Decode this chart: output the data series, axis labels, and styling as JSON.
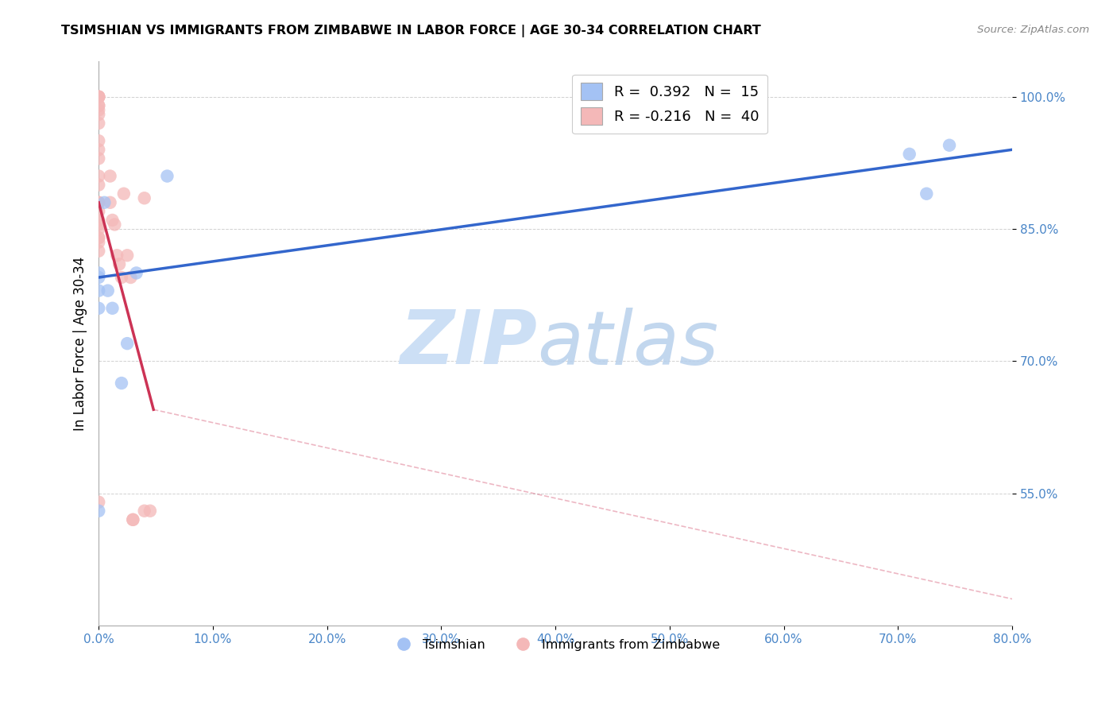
{
  "title": "TSIMSHIAN VS IMMIGRANTS FROM ZIMBABWE IN LABOR FORCE | AGE 30-34 CORRELATION CHART",
  "source": "Source: ZipAtlas.com",
  "ylabel_label": "In Labor Force | Age 30-34",
  "xlim": [
    0.0,
    0.8
  ],
  "ylim": [
    0.4,
    1.04
  ],
  "x_ticks": [
    0.0,
    0.1,
    0.2,
    0.3,
    0.4,
    0.5,
    0.6,
    0.7,
    0.8
  ],
  "y_ticks": [
    0.55,
    0.7,
    0.85,
    1.0
  ],
  "x_tick_labels": [
    "0.0%",
    "10.0%",
    "20.0%",
    "30.0%",
    "40.0%",
    "50.0%",
    "60.0%",
    "70.0%",
    "80.0%"
  ],
  "y_tick_labels": [
    "55.0%",
    "70.0%",
    "85.0%",
    "100.0%"
  ],
  "legend_label1": "R =  0.392   N =  15",
  "legend_label2": "R = -0.216   N =  40",
  "legend_color1": "#a4c2f4",
  "legend_color2": "#f4b8b8",
  "color_tsimshian": "#a4c2f4",
  "color_zimbabwe": "#f4b8b8",
  "trendline_color1": "#3366cc",
  "trendline_color2": "#cc3355",
  "watermark_zip": "ZIP",
  "watermark_atlas": "atlas",
  "blue_line_x0": 0.0,
  "blue_line_y0": 0.795,
  "blue_line_x1": 0.8,
  "blue_line_y1": 0.94,
  "pink_line_solid_x0": 0.0,
  "pink_line_solid_y0": 0.88,
  "pink_line_solid_x1": 0.048,
  "pink_line_solid_y1": 0.645,
  "pink_line_dash_x1": 0.8,
  "pink_line_dash_y1": 0.43,
  "tsimshian_x": [
    0.0,
    0.0,
    0.0,
    0.0,
    0.0,
    0.005,
    0.008,
    0.012,
    0.02,
    0.025,
    0.033,
    0.06,
    0.71,
    0.725,
    0.745
  ],
  "tsimshian_y": [
    0.8,
    0.795,
    0.78,
    0.76,
    0.53,
    0.88,
    0.78,
    0.76,
    0.675,
    0.72,
    0.8,
    0.91,
    0.935,
    0.89,
    0.945
  ],
  "zimbabwe_x": [
    0.0,
    0.0,
    0.0,
    0.0,
    0.0,
    0.0,
    0.0,
    0.0,
    0.0,
    0.0,
    0.0,
    0.0,
    0.0,
    0.0,
    0.0,
    0.0,
    0.0,
    0.0,
    0.0,
    0.0,
    0.0,
    0.0,
    0.0,
    0.0,
    0.0,
    0.01,
    0.01,
    0.012,
    0.014,
    0.016,
    0.018,
    0.02,
    0.022,
    0.025,
    0.028,
    0.03,
    0.03,
    0.04,
    0.04,
    0.045
  ],
  "zimbabwe_y": [
    0.54,
    0.87,
    0.9,
    0.93,
    0.94,
    0.95,
    0.97,
    0.98,
    0.985,
    0.99,
    0.99,
    1.0,
    1.0,
    1.0,
    1.0,
    0.88,
    0.91,
    0.88,
    0.86,
    0.855,
    0.85,
    0.84,
    0.84,
    0.835,
    0.825,
    0.91,
    0.88,
    0.86,
    0.855,
    0.82,
    0.81,
    0.795,
    0.89,
    0.82,
    0.795,
    0.52,
    0.52,
    0.885,
    0.53,
    0.53
  ]
}
